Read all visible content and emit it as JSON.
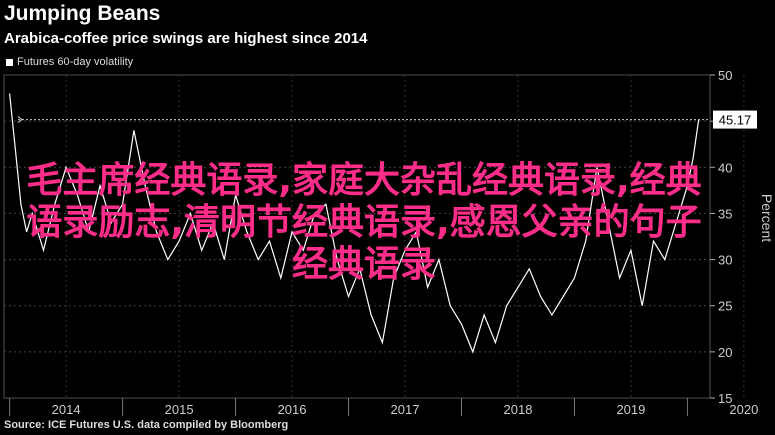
{
  "header": {
    "title": "Jumping Beans",
    "subtitle": "Arabica-coffee price swings are highest since 2014"
  },
  "legend": {
    "label": "Futures 60-day volatility"
  },
  "footer": {
    "source": "Source: ICE Futures U.S. data compiled by Bloomberg"
  },
  "overlay": {
    "text": "毛主席经典语录,家庭大杂乱经典语录,经典语录励志,清明节经典语录,感恩父亲的句子经典语录"
  },
  "colors": {
    "background": "#000000",
    "line": "#ffffff",
    "overlay_text": "#ff2d8a"
  },
  "chart_data": {
    "type": "line",
    "ylabel": "Percent",
    "ylim": [
      15,
      50
    ],
    "yticks": [
      "15",
      "20",
      "25",
      "30",
      "35",
      "40",
      "45",
      "50"
    ],
    "xticks": [
      "2014",
      "2015",
      "2016",
      "2017",
      "2018",
      "2019",
      "2020"
    ],
    "last_value_label": "45.17",
    "series": [
      {
        "name": "Futures 60-day volatility",
        "x": [
          2014.0,
          2014.05,
          2014.1,
          2014.15,
          2014.2,
          2014.3,
          2014.4,
          2014.5,
          2014.6,
          2014.7,
          2014.8,
          2014.9,
          2015.0,
          2015.1,
          2015.2,
          2015.3,
          2015.4,
          2015.5,
          2015.6,
          2015.7,
          2015.8,
          2015.9,
          2016.0,
          2016.1,
          2016.2,
          2016.3,
          2016.4,
          2016.5,
          2016.6,
          2016.7,
          2016.8,
          2016.9,
          2017.0,
          2017.1,
          2017.2,
          2017.3,
          2017.4,
          2017.5,
          2017.6,
          2017.7,
          2017.8,
          2017.9,
          2018.0,
          2018.1,
          2018.2,
          2018.3,
          2018.4,
          2018.5,
          2018.6,
          2018.7,
          2018.8,
          2018.9,
          2019.0,
          2019.1,
          2019.2,
          2019.3,
          2019.4,
          2019.5,
          2019.6,
          2019.7,
          2019.8,
          2019.9,
          2020.0,
          2020.05,
          2020.1
        ],
        "values": [
          48,
          42,
          36,
          33,
          35,
          31,
          36,
          40,
          37,
          33,
          38,
          34,
          36,
          44,
          38,
          33,
          30,
          32,
          35,
          31,
          34,
          30,
          37,
          33,
          30,
          32,
          28,
          33,
          31,
          35,
          36,
          30,
          26,
          29,
          24,
          21,
          28,
          31,
          33,
          27,
          30,
          25,
          23,
          20,
          24,
          21,
          25,
          27,
          29,
          26,
          24,
          26,
          28,
          32,
          40,
          34,
          28,
          31,
          25,
          32,
          30,
          34,
          38,
          41,
          45.17
        ]
      }
    ]
  }
}
